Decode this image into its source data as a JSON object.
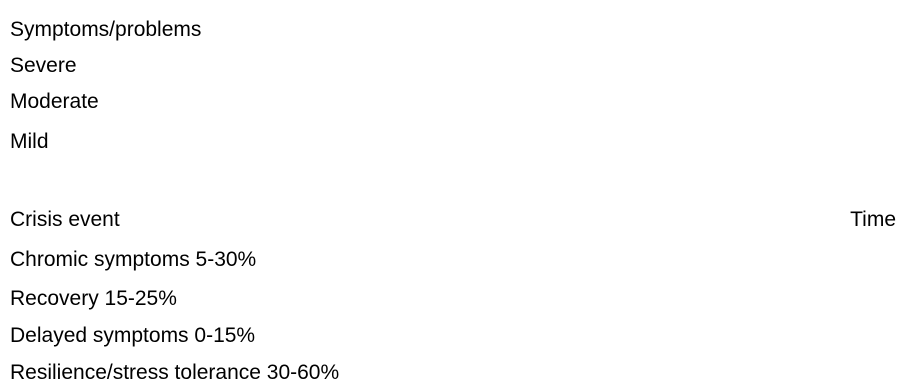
{
  "severity_axis": {
    "title": "Symptoms/problems",
    "levels": [
      "Severe",
      "Moderate",
      "Mild"
    ]
  },
  "timeline": {
    "start_label": "Crisis event",
    "end_label": "Time"
  },
  "trajectories": [
    "Chromic symptoms 5-30%",
    "Recovery 15-25%",
    "Delayed symptoms 0-15%",
    "Resilience/stress tolerance 30-60%"
  ]
}
